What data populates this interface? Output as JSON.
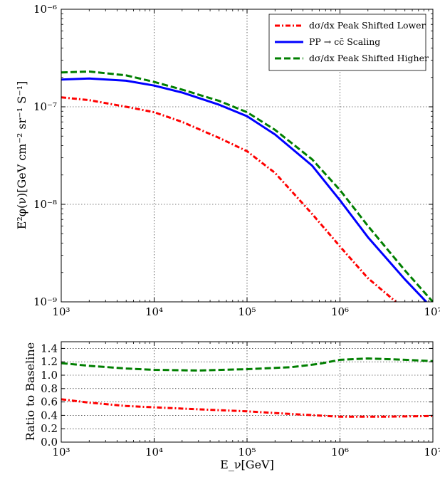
{
  "chart_data": [
    {
      "type": "line",
      "xscale": "log",
      "yscale": "log",
      "xlim": [
        1000,
        10000000
      ],
      "ylim": [
        1e-09,
        1e-06
      ],
      "grid": true,
      "legend_position": "top-right",
      "ylabel": "E²φ(ν)[GeV cm⁻² sr⁻¹ S⁻¹]",
      "x_tick_labels": [
        "10³",
        "10⁴",
        "10⁵",
        "10⁶",
        "10⁷"
      ],
      "y_tick_labels": [
        "10⁻⁹",
        "10⁻⁸",
        "10⁻⁷",
        "10⁻⁶"
      ],
      "series": [
        {
          "name": "dσ/dx Peak Shifted Lower",
          "color": "#ff0000",
          "style": "dashdot",
          "x": [
            1000,
            2000,
            5000,
            10000,
            20000,
            50000,
            100000,
            200000,
            500000,
            1000000,
            2000000,
            4000000
          ],
          "y": [
            1.25e-07,
            1.17e-07,
            1e-07,
            8.8e-08,
            7e-08,
            4.8e-08,
            3.5e-08,
            2.1e-08,
            8e-09,
            3.7e-09,
            1.75e-09,
            1e-09
          ]
        },
        {
          "name": "PP → cc̄ Scaling",
          "color": "#0000ff",
          "style": "solid",
          "x": [
            1000,
            2000,
            5000,
            10000,
            20000,
            50000,
            100000,
            200000,
            500000,
            1000000,
            2000000,
            5000000,
            8500000
          ],
          "y": [
            1.9e-07,
            1.95e-07,
            1.85e-07,
            1.65e-07,
            1.4e-07,
            1.05e-07,
            8e-08,
            5.2e-08,
            2.5e-08,
            1.1e-08,
            4.6e-09,
            1.7e-09,
            1e-09
          ]
        },
        {
          "name": "dσ/dx Peak Shifted Higher",
          "color": "#007f00",
          "style": "dashed",
          "x": [
            1000,
            2000,
            5000,
            10000,
            20000,
            50000,
            100000,
            200000,
            500000,
            1000000,
            2000000,
            5000000,
            10000000
          ],
          "y": [
            2.25e-07,
            2.3e-07,
            2.1e-07,
            1.8e-07,
            1.5e-07,
            1.15e-07,
            8.8e-08,
            5.8e-08,
            2.9e-08,
            1.4e-08,
            6e-09,
            2.1e-09,
            1e-09
          ]
        }
      ]
    },
    {
      "type": "line",
      "xscale": "log",
      "xlim": [
        1000,
        10000000
      ],
      "ylim": [
        0.0,
        1.5
      ],
      "grid": true,
      "xlabel": "E_ν[GeV]",
      "ylabel": "Ratio to Baseline",
      "x_tick_labels": [
        "10³",
        "10⁴",
        "10⁵",
        "10⁶",
        "10⁷"
      ],
      "y_tick_labels": [
        "0.0",
        "0.2",
        "0.4",
        "0.6",
        "0.8",
        "1.0",
        "1.2",
        "1.4"
      ],
      "series": [
        {
          "color": "#007f00",
          "style": "dashed",
          "x": [
            1000,
            2000,
            5000,
            10000,
            30000,
            100000,
            300000,
            600000,
            1000000,
            2000000,
            5000000,
            10000000
          ],
          "y": [
            1.18,
            1.14,
            1.1,
            1.08,
            1.07,
            1.09,
            1.12,
            1.17,
            1.23,
            1.25,
            1.23,
            1.21
          ]
        },
        {
          "color": "#ff0000",
          "style": "dashdot",
          "x": [
            1000,
            2000,
            5000,
            10000,
            30000,
            100000,
            300000,
            1000000,
            3000000,
            10000000
          ],
          "y": [
            0.64,
            0.59,
            0.54,
            0.52,
            0.49,
            0.46,
            0.42,
            0.38,
            0.38,
            0.39
          ]
        }
      ]
    }
  ]
}
